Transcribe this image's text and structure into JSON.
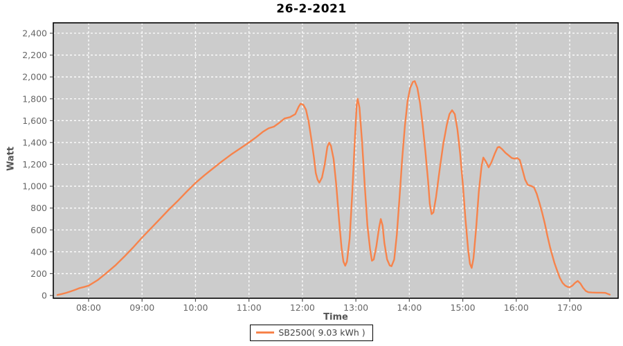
{
  "title": "26-2-2021",
  "axes": {
    "x_label": "Time",
    "y_label": "Watt"
  },
  "legend": {
    "label": "SB2500( 9.03 kWh )"
  },
  "colors": {
    "series": "#f7834b",
    "plot_bg": "#cccccc",
    "grid": "#ffffff",
    "plot_border": "#000000",
    "tick_text": "#666666",
    "axis_title_text": "#555555",
    "title_text": "#000000"
  },
  "chart_data": {
    "type": "line",
    "title": "26-2-2021",
    "xlabel": "Time",
    "ylabel": "Watt",
    "grid": "white dashed on gray plot background",
    "legend_position": "bottom-center",
    "x_tick_labels": [
      "08:00",
      "09:00",
      "10:00",
      "11:00",
      "12:00",
      "13:00",
      "14:00",
      "15:00",
      "16:00",
      "17:00"
    ],
    "x_tick_minutes": [
      480,
      540,
      600,
      660,
      720,
      780,
      840,
      900,
      960,
      1020
    ],
    "y_tick_values": [
      0,
      200,
      400,
      600,
      800,
      1000,
      1200,
      1400,
      1600,
      1800,
      2000,
      2200,
      2400
    ],
    "ylim": [
      0,
      2400
    ],
    "xlim_minutes": [
      440,
      1074
    ],
    "series": [
      {
        "name": "SB2500( 9.03 kWh )",
        "color": "#f7834b",
        "total_energy_kwh": 9.03,
        "points_min_watt": [
          [
            445,
            5
          ],
          [
            450,
            14
          ],
          [
            455,
            25
          ],
          [
            460,
            38
          ],
          [
            465,
            52
          ],
          [
            470,
            68
          ],
          [
            475,
            78
          ],
          [
            480,
            90
          ],
          [
            490,
            140
          ],
          [
            500,
            205
          ],
          [
            510,
            275
          ],
          [
            520,
            355
          ],
          [
            530,
            440
          ],
          [
            540,
            530
          ],
          [
            550,
            615
          ],
          [
            560,
            700
          ],
          [
            570,
            785
          ],
          [
            580,
            865
          ],
          [
            590,
            950
          ],
          [
            600,
            1030
          ],
          [
            610,
            1100
          ],
          [
            620,
            1165
          ],
          [
            630,
            1230
          ],
          [
            640,
            1290
          ],
          [
            650,
            1345
          ],
          [
            660,
            1400
          ],
          [
            668,
            1448
          ],
          [
            676,
            1500
          ],
          [
            682,
            1530
          ],
          [
            688,
            1545
          ],
          [
            694,
            1580
          ],
          [
            700,
            1620
          ],
          [
            706,
            1632
          ],
          [
            712,
            1660
          ],
          [
            716,
            1730
          ],
          [
            718,
            1755
          ],
          [
            721,
            1745
          ],
          [
            724,
            1700
          ],
          [
            727,
            1590
          ],
          [
            730,
            1430
          ],
          [
            733,
            1260
          ],
          [
            735,
            1120
          ],
          [
            737,
            1060
          ],
          [
            739,
            1032
          ],
          [
            742,
            1080
          ],
          [
            745,
            1200
          ],
          [
            748,
            1360
          ],
          [
            750,
            1398
          ],
          [
            752,
            1370
          ],
          [
            755,
            1250
          ],
          [
            758,
            1010
          ],
          [
            761,
            700
          ],
          [
            764,
            430
          ],
          [
            766,
            310
          ],
          [
            768,
            272
          ],
          [
            770,
            310
          ],
          [
            773,
            520
          ],
          [
            776,
            950
          ],
          [
            779,
            1450
          ],
          [
            781,
            1750
          ],
          [
            782,
            1800
          ],
          [
            784,
            1720
          ],
          [
            787,
            1400
          ],
          [
            790,
            1000
          ],
          [
            793,
            640
          ],
          [
            796,
            420
          ],
          [
            798,
            318
          ],
          [
            800,
            330
          ],
          [
            803,
            450
          ],
          [
            806,
            620
          ],
          [
            808,
            700
          ],
          [
            810,
            640
          ],
          [
            812,
            480
          ],
          [
            815,
            330
          ],
          [
            818,
            275
          ],
          [
            820,
            268
          ],
          [
            823,
            330
          ],
          [
            826,
            560
          ],
          [
            829,
            900
          ],
          [
            832,
            1250
          ],
          [
            835,
            1550
          ],
          [
            838,
            1780
          ],
          [
            841,
            1900
          ],
          [
            844,
            1955
          ],
          [
            846,
            1962
          ],
          [
            849,
            1900
          ],
          [
            852,
            1760
          ],
          [
            855,
            1560
          ],
          [
            858,
            1320
          ],
          [
            861,
            1050
          ],
          [
            863,
            840
          ],
          [
            865,
            745
          ],
          [
            867,
            760
          ],
          [
            870,
            900
          ],
          [
            874,
            1150
          ],
          [
            878,
            1380
          ],
          [
            882,
            1560
          ],
          [
            885,
            1660
          ],
          [
            888,
            1695
          ],
          [
            891,
            1660
          ],
          [
            894,
            1520
          ],
          [
            897,
            1300
          ],
          [
            900,
            1020
          ],
          [
            903,
            700
          ],
          [
            906,
            420
          ],
          [
            908,
            290
          ],
          [
            910,
            252
          ],
          [
            912,
            340
          ],
          [
            915,
            620
          ],
          [
            918,
            950
          ],
          [
            921,
            1180
          ],
          [
            923,
            1262
          ],
          [
            926,
            1225
          ],
          [
            929,
            1172
          ],
          [
            932,
            1215
          ],
          [
            936,
            1300
          ],
          [
            939,
            1355
          ],
          [
            941,
            1360
          ],
          [
            944,
            1340
          ],
          [
            948,
            1305
          ],
          [
            951,
            1285
          ],
          [
            955,
            1258
          ],
          [
            958,
            1252
          ],
          [
            961,
            1258
          ],
          [
            964,
            1240
          ],
          [
            967,
            1150
          ],
          [
            970,
            1060
          ],
          [
            973,
            1012
          ],
          [
            977,
            1002
          ],
          [
            980,
            988
          ],
          [
            983,
            930
          ],
          [
            986,
            850
          ],
          [
            989,
            760
          ],
          [
            992,
            660
          ],
          [
            995,
            545
          ],
          [
            998,
            440
          ],
          [
            1000,
            380
          ],
          [
            1003,
            295
          ],
          [
            1006,
            225
          ],
          [
            1009,
            160
          ],
          [
            1012,
            115
          ],
          [
            1015,
            90
          ],
          [
            1018,
            78
          ],
          [
            1020,
            76
          ],
          [
            1023,
            90
          ],
          [
            1026,
            115
          ],
          [
            1029,
            133
          ],
          [
            1032,
            110
          ],
          [
            1035,
            70
          ],
          [
            1038,
            42
          ],
          [
            1041,
            30
          ],
          [
            1045,
            27
          ],
          [
            1050,
            26
          ],
          [
            1055,
            26
          ],
          [
            1060,
            24
          ],
          [
            1063,
            14
          ],
          [
            1065,
            8
          ]
        ]
      }
    ]
  }
}
